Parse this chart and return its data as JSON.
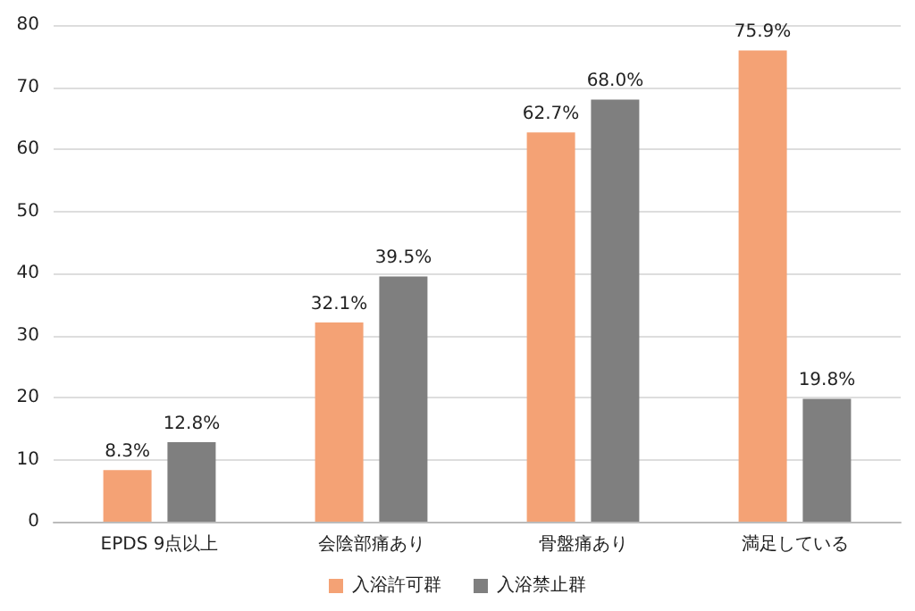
{
  "chart_data": {
    "type": "bar",
    "categories": [
      "EPDS 9点以上",
      "会陰部痛あり",
      "骨盤痛あり",
      "満足している"
    ],
    "series": [
      {
        "name": "入浴許可群",
        "color": "#f4a275",
        "values": [
          8.3,
          32.1,
          62.7,
          75.9
        ],
        "value_labels": [
          "8.3%",
          "32.1%",
          "62.7%",
          "75.9%"
        ]
      },
      {
        "name": "入浴禁止群",
        "color": "#7f7f7f",
        "values": [
          12.8,
          39.5,
          68.0,
          19.8
        ],
        "value_labels": [
          "12.8%",
          "39.5%",
          "68.0%",
          "19.8%"
        ]
      }
    ],
    "ylim": [
      0,
      80
    ],
    "yticks": [
      0,
      10,
      20,
      30,
      40,
      50,
      60,
      70,
      80
    ],
    "grid": "y",
    "legend": "bottom"
  }
}
